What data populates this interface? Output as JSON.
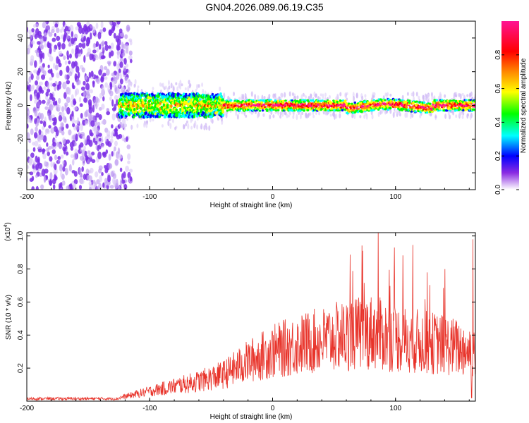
{
  "title": "GN04.2026.089.06.19.C35",
  "chart_data": [
    {
      "type": "heatmap",
      "name": "spectrogram",
      "xlabel": "Height of straight line (km)",
      "ylabel": "Frequency (Hz)",
      "xlim": [
        -200,
        165
      ],
      "ylim": [
        -50,
        50
      ],
      "xticks": [
        -200,
        -100,
        0,
        100
      ],
      "yticks": [
        -40,
        -20,
        0,
        20,
        40
      ],
      "xtick_labels": [
        "-200",
        "-100",
        "0",
        "100"
      ],
      "ytick_labels": [
        "-40",
        "-20",
        "0",
        "20",
        "40"
      ],
      "colorbar": {
        "label": "Normalized spectral amplitude",
        "range": [
          0,
          1
        ],
        "ticks": [
          0.0,
          0.2,
          0.4,
          0.6,
          0.8
        ],
        "tick_labels": [
          "0.0",
          "0.2",
          "0.4",
          "0.6",
          "0.8"
        ],
        "colors": [
          "#ffffff",
          "#8a2be2",
          "#0000ff",
          "#00ffff",
          "#00ff00",
          "#ffff00",
          "#ff8800",
          "#ff0000",
          "#ff1493"
        ]
      },
      "description_features": {
        "noise_region_x": [
          -200,
          -125
        ],
        "signal_start_x": -125,
        "signal_center_freq_hz": 0
      }
    },
    {
      "type": "line",
      "name": "snr",
      "xlabel": "Height of straight line (km)",
      "ylabel": "SNR (10 * v/v)",
      "scale_label": "(x10",
      "scale_exp": "4",
      "scale_close": ")",
      "xlim": [
        -200,
        165
      ],
      "ylim": [
        0,
        1.02
      ],
      "xticks": [
        -200,
        -100,
        0,
        100
      ],
      "yticks": [
        0.2,
        0.4,
        0.6,
        0.8,
        1.0
      ],
      "xtick_labels": [
        "-200",
        "-100",
        "0",
        "100"
      ],
      "ytick_labels": [
        "0.2",
        "0.4",
        "0.6",
        "0.8",
        "1.0"
      ],
      "color": "#e8332a",
      "envelope": {
        "x": [
          -200,
          -150,
          -125,
          -100,
          -80,
          -60,
          -40,
          -20,
          0,
          20,
          40,
          60,
          80,
          100,
          120,
          140,
          165
        ],
        "y": [
          0.012,
          0.012,
          0.02,
          0.06,
          0.09,
          0.12,
          0.16,
          0.24,
          0.3,
          0.34,
          0.37,
          0.4,
          0.42,
          0.38,
          0.36,
          0.34,
          0.3
        ]
      }
    }
  ]
}
